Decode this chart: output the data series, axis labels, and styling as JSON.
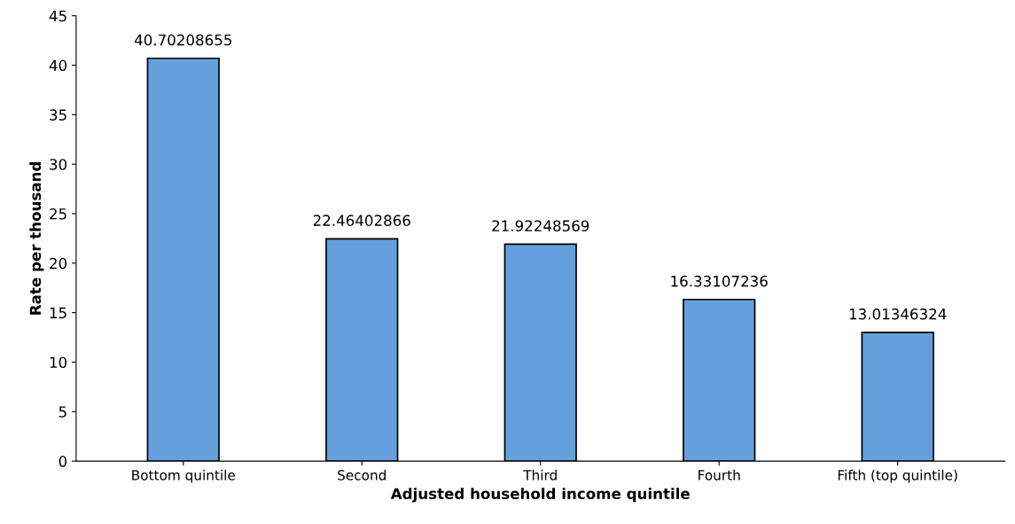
{
  "chart_data": {
    "type": "bar",
    "xlabel": "Adjusted household income quintile",
    "ylabel": "Rate per thousand",
    "categories": [
      "Bottom quintile",
      "Second",
      "Third",
      "Fourth",
      "Fifth (top quintile)"
    ],
    "values": [
      40.70208655,
      22.46402866,
      21.92248569,
      16.33107236,
      13.01346324
    ],
    "color": "#659fdc",
    "ylim": [
      0,
      45
    ],
    "yticks": [
      0,
      5,
      10,
      15,
      20,
      25,
      30,
      35,
      40,
      45
    ],
    "data_labels": true,
    "grid": false
  }
}
